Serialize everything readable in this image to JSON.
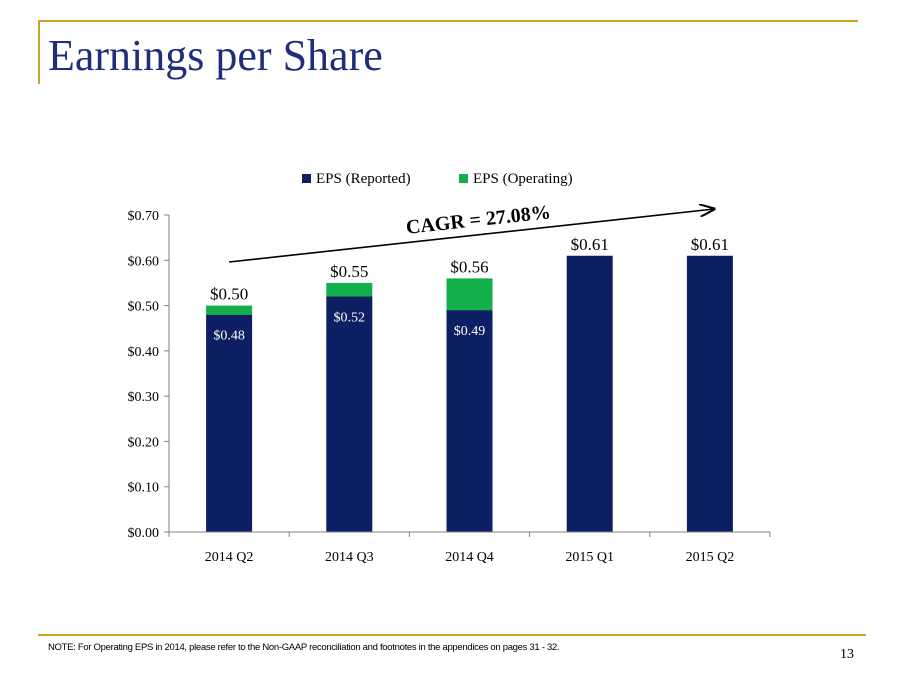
{
  "slide": {
    "title": "Earnings per Share",
    "note": "NOTE:   For Operating EPS in 2014, please refer to the Non-GAAP reconciliation and footnotes in the appendices on pages 31 - 32.",
    "page_number": "13"
  },
  "colors": {
    "reported": "#0d1f63",
    "operating": "#12b04a",
    "accent": "#c9a227",
    "title": "#1f2d7a"
  },
  "chart_data": {
    "type": "bar",
    "stacked": true,
    "categories": [
      "2014 Q2",
      "2014 Q3",
      "2014 Q4",
      "2015 Q1",
      "2015 Q2"
    ],
    "series": [
      {
        "name": "EPS (Reported)",
        "values": [
          0.48,
          0.52,
          0.49,
          0.61,
          0.61
        ],
        "labels": [
          "$0.48",
          "$0.52",
          "$0.49",
          "",
          ""
        ]
      },
      {
        "name": "EPS (Operating)",
        "values": [
          0.02,
          0.03,
          0.07,
          0,
          0
        ]
      }
    ],
    "total_labels": [
      "$0.50",
      "$0.55",
      "$0.56",
      "$0.61",
      "$0.61"
    ],
    "y_ticks": [
      "$0.00",
      "$0.10",
      "$0.20",
      "$0.30",
      "$0.40",
      "$0.50",
      "$0.60",
      "$0.70"
    ],
    "ylim": [
      0,
      0.7
    ],
    "annotation": "CAGR = 27.08%",
    "legend_position": "top",
    "grid": false
  }
}
